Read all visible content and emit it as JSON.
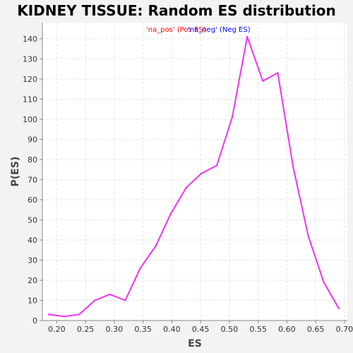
{
  "chart_data": {
    "type": "line",
    "title": "KIDNEY TISSUE: Random ES distribution",
    "xlabel": "ES",
    "ylabel": "P(ES)",
    "xlim": [
      0.175,
      0.705
    ],
    "ylim": [
      0,
      148
    ],
    "x_ticks": [
      0.2,
      0.25,
      0.3,
      0.35,
      0.4,
      0.45,
      0.5,
      0.55,
      0.6,
      0.65,
      0.7
    ],
    "x_tick_labels": [
      "0.20",
      "0.25",
      "0.30",
      "0.35",
      "0.40",
      "0.45",
      "0.50",
      "0.55",
      "0.60",
      "0.65",
      "0.70"
    ],
    "y_ticks": [
      0,
      10,
      20,
      30,
      40,
      50,
      60,
      70,
      80,
      90,
      100,
      110,
      120,
      130,
      140
    ],
    "y_tick_labels": [
      "0",
      "10",
      "20",
      "30",
      "40",
      "50",
      "60",
      "70",
      "80",
      "90",
      "100",
      "110",
      "120",
      "130",
      "140"
    ],
    "grid": true,
    "legend_position": "top-center",
    "legend": [
      {
        "label": "'na_pos' (Pos ES)",
        "color": "#ff0000"
      },
      {
        "label": "'na_neg' (Neg ES)",
        "color": "#0000ff"
      }
    ],
    "series": [
      {
        "color": "#ee33ee",
        "x": [
          0.186,
          0.213,
          0.239,
          0.266,
          0.292,
          0.319,
          0.345,
          0.372,
          0.398,
          0.425,
          0.451,
          0.478,
          0.505,
          0.531,
          0.558,
          0.584,
          0.611,
          0.637,
          0.664,
          0.69
        ],
        "y": [
          3,
          2,
          3,
          10,
          13,
          10,
          26,
          37,
          53,
          66,
          73,
          77,
          101,
          141,
          119,
          123,
          76,
          42,
          19,
          6
        ]
      }
    ]
  }
}
